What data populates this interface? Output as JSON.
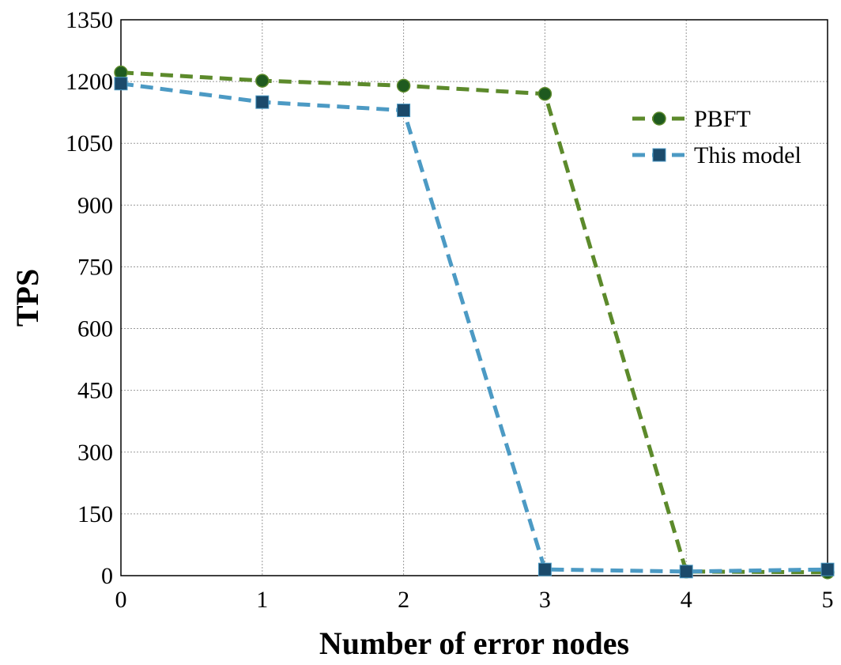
{
  "chart_data": {
    "type": "line",
    "title": "",
    "xlabel": "Number of error nodes",
    "ylabel": "TPS",
    "xlim": [
      0,
      5
    ],
    "ylim": [
      0,
      1350
    ],
    "xticks": [
      0,
      1,
      2,
      3,
      4,
      5
    ],
    "yticks": [
      0,
      150,
      300,
      450,
      600,
      750,
      900,
      1050,
      1200,
      1350
    ],
    "grid": true,
    "legend_position": "right",
    "series": [
      {
        "name": "PBFT",
        "color": "#5c8a2b",
        "marker": "circle",
        "marker_color": "#1f5a1f",
        "line_style": "dashed",
        "x": [
          0,
          1,
          2,
          3,
          4,
          5
        ],
        "y": [
          1222,
          1202,
          1190,
          1170,
          10,
          8
        ]
      },
      {
        "name": "This model",
        "color": "#4c9ac4",
        "marker": "square",
        "marker_color": "#1b4a6b",
        "line_style": "dashed",
        "x": [
          0,
          1,
          2,
          3,
          4,
          5
        ],
        "y": [
          1195,
          1150,
          1130,
          15,
          10,
          15
        ]
      }
    ]
  }
}
